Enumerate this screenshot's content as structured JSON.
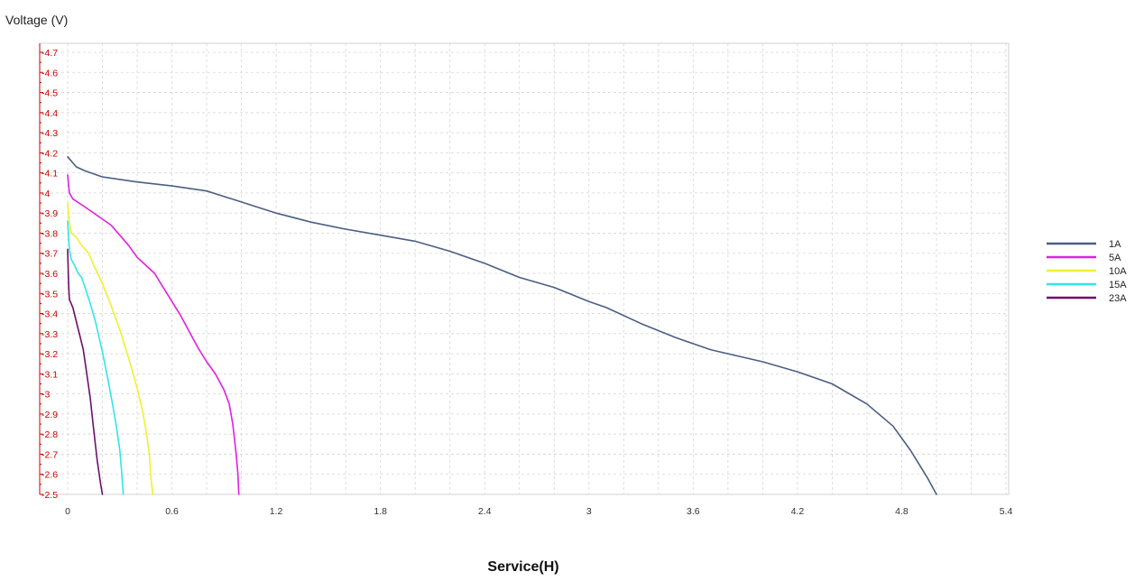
{
  "chart_data": {
    "type": "line",
    "ylabel": "Voltage (V)",
    "xlabel": "Service(H)",
    "xlim": [
      0,
      5.4
    ],
    "ylim": [
      2.5,
      4.7
    ],
    "x_ticks": [
      "0",
      "0.6",
      "1.2",
      "1.8",
      "2.4",
      "3",
      "3.6",
      "4.2",
      "4.8",
      "5.4"
    ],
    "y_ticks": [
      "2.5",
      "2.6",
      "2.7",
      "2.8",
      "2.9",
      "3",
      "3.1",
      "3.2",
      "3.3",
      "3.4",
      "3.5",
      "3.6",
      "3.7",
      "3.8",
      "3.9",
      "4",
      "4.1",
      "4.2",
      "4.3",
      "4.4",
      "4.5",
      "4.6",
      "4.7"
    ],
    "grid": true,
    "legend_position": "right",
    "series": [
      {
        "name": "1A",
        "color": "#4a5f82",
        "points": [
          [
            0,
            4.18
          ],
          [
            0.05,
            4.13
          ],
          [
            0.1,
            4.11
          ],
          [
            0.2,
            4.08
          ],
          [
            0.4,
            4.055
          ],
          [
            0.6,
            4.035
          ],
          [
            0.8,
            4.01
          ],
          [
            1.0,
            3.955
          ],
          [
            1.2,
            3.9
          ],
          [
            1.4,
            3.855
          ],
          [
            1.6,
            3.82
          ],
          [
            1.8,
            3.79
          ],
          [
            2.0,
            3.76
          ],
          [
            2.2,
            3.71
          ],
          [
            2.4,
            3.65
          ],
          [
            2.6,
            3.58
          ],
          [
            2.8,
            3.53
          ],
          [
            3.0,
            3.46
          ],
          [
            3.1,
            3.43
          ],
          [
            3.3,
            3.35
          ],
          [
            3.5,
            3.28
          ],
          [
            3.7,
            3.22
          ],
          [
            3.8,
            3.2
          ],
          [
            4.0,
            3.16
          ],
          [
            4.2,
            3.11
          ],
          [
            4.4,
            3.05
          ],
          [
            4.6,
            2.95
          ],
          [
            4.75,
            2.84
          ],
          [
            4.85,
            2.72
          ],
          [
            4.95,
            2.58
          ],
          [
            5.0,
            2.5
          ]
        ]
      },
      {
        "name": "5A",
        "color": "#e020e0",
        "points": [
          [
            0,
            4.09
          ],
          [
            0.01,
            4.0
          ],
          [
            0.03,
            3.97
          ],
          [
            0.1,
            3.93
          ],
          [
            0.2,
            3.87
          ],
          [
            0.25,
            3.84
          ],
          [
            0.3,
            3.79
          ],
          [
            0.35,
            3.74
          ],
          [
            0.4,
            3.68
          ],
          [
            0.45,
            3.64
          ],
          [
            0.5,
            3.6
          ],
          [
            0.55,
            3.53
          ],
          [
            0.6,
            3.46
          ],
          [
            0.65,
            3.39
          ],
          [
            0.7,
            3.31
          ],
          [
            0.75,
            3.23
          ],
          [
            0.8,
            3.16
          ],
          [
            0.85,
            3.1
          ],
          [
            0.9,
            3.02
          ],
          [
            0.93,
            2.95
          ],
          [
            0.95,
            2.85
          ],
          [
            0.97,
            2.7
          ],
          [
            0.98,
            2.6
          ],
          [
            0.985,
            2.5
          ]
        ]
      },
      {
        "name": "10A",
        "color": "#f0f030",
        "points": [
          [
            0,
            3.95
          ],
          [
            0.01,
            3.85
          ],
          [
            0.02,
            3.8
          ],
          [
            0.05,
            3.78
          ],
          [
            0.08,
            3.74
          ],
          [
            0.12,
            3.7
          ],
          [
            0.15,
            3.64
          ],
          [
            0.2,
            3.55
          ],
          [
            0.25,
            3.44
          ],
          [
            0.3,
            3.32
          ],
          [
            0.35,
            3.18
          ],
          [
            0.4,
            3.03
          ],
          [
            0.43,
            2.92
          ],
          [
            0.45,
            2.82
          ],
          [
            0.47,
            2.7
          ],
          [
            0.48,
            2.58
          ],
          [
            0.49,
            2.5
          ]
        ]
      },
      {
        "name": "15A",
        "color": "#33e5e5",
        "points": [
          [
            0,
            3.86
          ],
          [
            0.01,
            3.72
          ],
          [
            0.02,
            3.67
          ],
          [
            0.04,
            3.64
          ],
          [
            0.06,
            3.6
          ],
          [
            0.08,
            3.58
          ],
          [
            0.1,
            3.53
          ],
          [
            0.13,
            3.45
          ],
          [
            0.16,
            3.36
          ],
          [
            0.2,
            3.21
          ],
          [
            0.23,
            3.08
          ],
          [
            0.26,
            2.94
          ],
          [
            0.28,
            2.84
          ],
          [
            0.3,
            2.72
          ],
          [
            0.31,
            2.62
          ],
          [
            0.32,
            2.5
          ]
        ]
      },
      {
        "name": "23A",
        "color": "#6e0e6e",
        "points": [
          [
            0,
            3.72
          ],
          [
            0.005,
            3.55
          ],
          [
            0.01,
            3.47
          ],
          [
            0.03,
            3.43
          ],
          [
            0.05,
            3.36
          ],
          [
            0.07,
            3.29
          ],
          [
            0.09,
            3.22
          ],
          [
            0.11,
            3.1
          ],
          [
            0.13,
            2.98
          ],
          [
            0.15,
            2.82
          ],
          [
            0.17,
            2.67
          ],
          [
            0.19,
            2.55
          ],
          [
            0.2,
            2.5
          ]
        ]
      }
    ]
  }
}
